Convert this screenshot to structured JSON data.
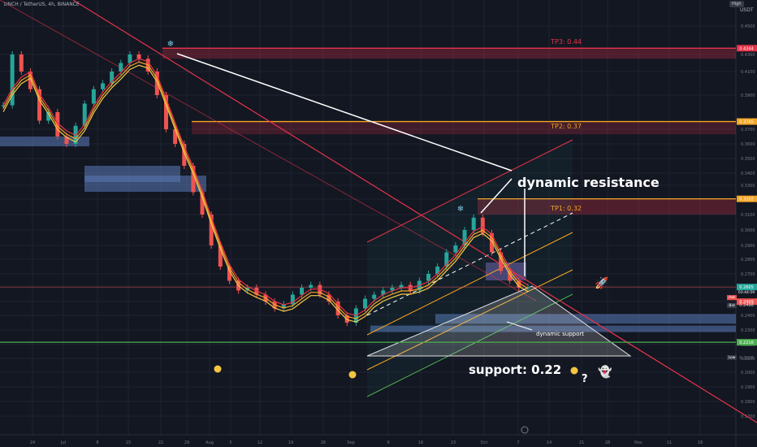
{
  "header": {
    "symbol": "1INCH / TetherUS, 4h, BINANCE",
    "currency": "USDT",
    "high_badge": "High"
  },
  "colors": {
    "bg": "#131722",
    "grid": "#1f2331",
    "axis_text": "#787b86",
    "candle_up": "#26a69a",
    "candle_down": "#ef5350",
    "red_line": "#e8334a",
    "orange": "#f5a623",
    "yellow_ema": "#f7c948",
    "green_line": "#4caf50",
    "blue_zone": "#5b7ab8"
  },
  "chart_data": {
    "type": "candlestick",
    "x_ticks": [
      "24",
      "Jul",
      "8",
      "15",
      "22",
      "29",
      "Aug",
      "5",
      "12",
      "19",
      "26",
      "Sep",
      "9",
      "16",
      "23",
      "Oct",
      "7",
      "14",
      "21",
      "28",
      "Nov",
      "11",
      "18"
    ],
    "y_ticks": [
      "0.4500",
      "0.4300",
      "0.4100",
      "0.3900",
      "0.3700",
      "0.3600",
      "0.3500",
      "0.3400",
      "0.3300",
      "0.3200",
      "0.3100",
      "0.3000",
      "0.2900",
      "0.2800",
      "0.2700",
      "0.2600",
      "0.2500",
      "0.2400",
      "0.2300",
      "0.2200",
      "0.2100",
      "0.2000",
      "0.1900",
      "0.1800",
      "0.1700"
    ],
    "price_badges": [
      {
        "text": "0.4344",
        "color": "#e8334a",
        "y": 0.4344
      },
      {
        "text": "0.3745",
        "color": "#f5a623",
        "y": 0.3745
      },
      {
        "text": "0.3202",
        "color": "#f5a623",
        "y": 0.3202
      },
      {
        "text": "0.2605",
        "color": "#26a69a",
        "y": 0.2605
      },
      {
        "text": "0.2499",
        "color": "#ef5350",
        "y": 0.2499
      },
      {
        "text": "0.2216",
        "color": "#4caf50",
        "y": 0.2216
      }
    ],
    "close_price": "0.2605",
    "countdown": "03:44:59",
    "ask": {
      "label": "Ask",
      "value": "0.2499"
    },
    "bid": {
      "label": "Bid",
      "value": "0.2498"
    },
    "low": {
      "label": "Low",
      "value": "0.2106"
    },
    "levels": [
      {
        "name": "TP3: 0.44",
        "value": 0.44
      },
      {
        "name": "TP2: 0.37",
        "value": 0.37
      },
      {
        "name": "TP1: 0.32",
        "value": 0.32
      },
      {
        "name": "support: 0.22",
        "value": 0.22
      }
    ],
    "annotations": {
      "dynamic_resistance": "dynamic resistance",
      "dynamic_support": "dynamic support",
      "question": "?"
    },
    "close_series": [
      0.384,
      0.43,
      0.41,
      0.395,
      0.375,
      0.38,
      0.365,
      0.36,
      0.372,
      0.385,
      0.395,
      0.4,
      0.41,
      0.42,
      0.43,
      0.425,
      0.41,
      0.39,
      0.37,
      0.36,
      0.345,
      0.325,
      0.31,
      0.29,
      0.275,
      0.265,
      0.258,
      0.26,
      0.255,
      0.25,
      0.245,
      0.248,
      0.255,
      0.26,
      0.262,
      0.255,
      0.25,
      0.24,
      0.235,
      0.245,
      0.252,
      0.255,
      0.258,
      0.26,
      0.262,
      0.258,
      0.265,
      0.27,
      0.275,
      0.285,
      0.29,
      0.3,
      0.308,
      0.298,
      0.285,
      0.272,
      0.265,
      0.26,
      0.2605
    ]
  }
}
